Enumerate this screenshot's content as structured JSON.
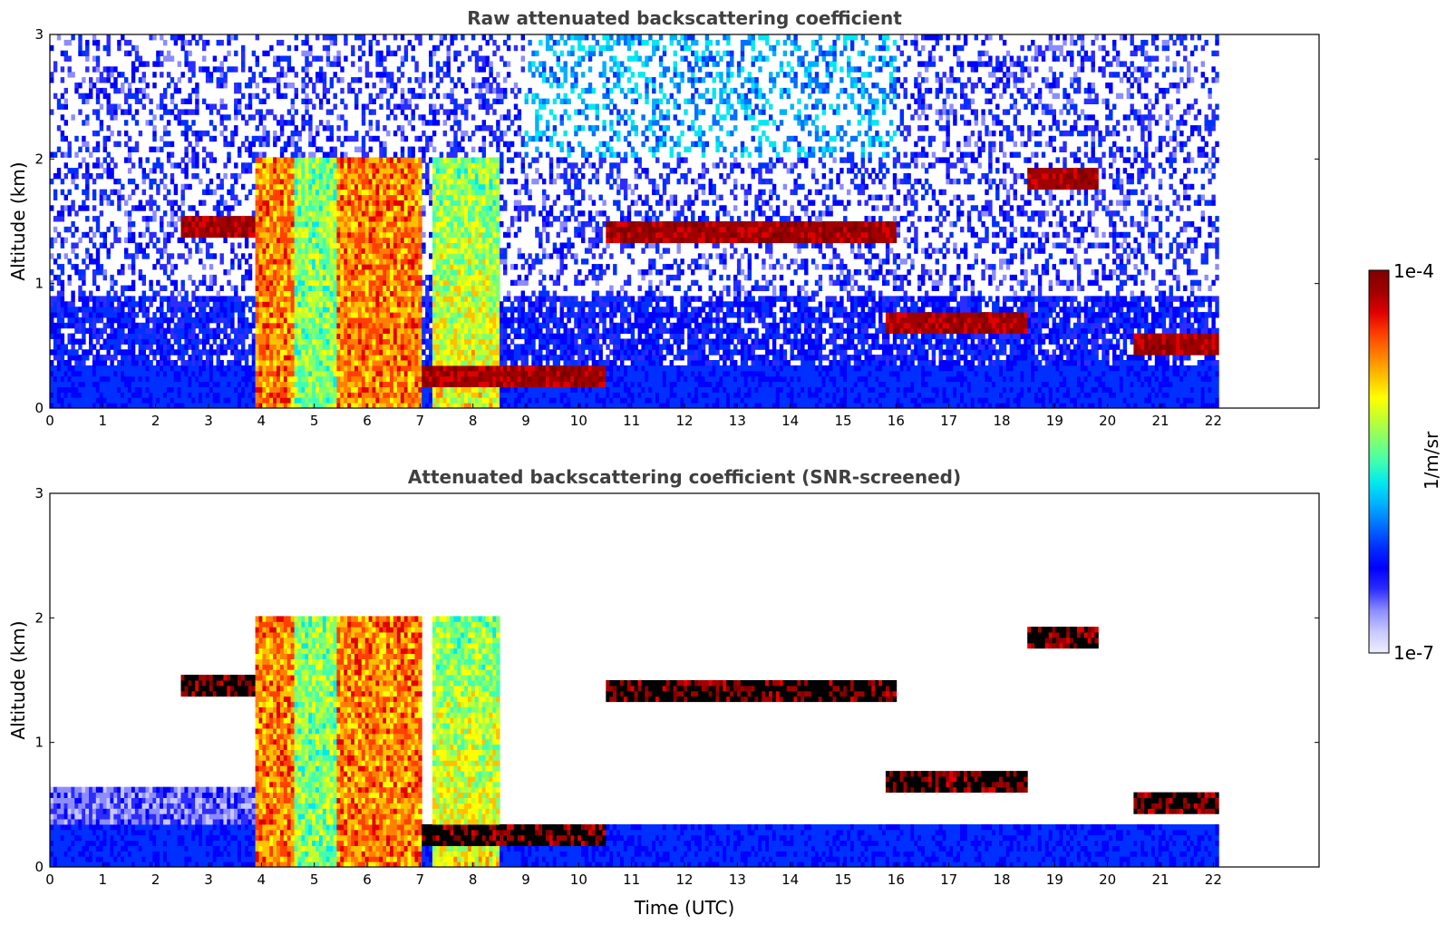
{
  "chart_data": [
    {
      "type": "heatmap",
      "title": "Raw attenuated backscattering coefficient",
      "xlabel": "",
      "ylabel": "Altitude (km)",
      "xlim": [
        0,
        24
      ],
      "ylim": [
        0,
        3
      ],
      "xticks": [
        "0",
        "1",
        "2",
        "3",
        "4",
        "5",
        "6",
        "7",
        "8",
        "9",
        "10",
        "11",
        "12",
        "13",
        "14",
        "15",
        "16",
        "17",
        "18",
        "19",
        "20",
        "21",
        "22"
      ],
      "yticks": [
        "0",
        "1",
        "2",
        "3"
      ],
      "data_end_time": 22.1,
      "screened": false,
      "layers": [
        {
          "name": "aerosol boundary layer",
          "t0": 0.0,
          "t1": 22.1,
          "top_km": 0.35
        },
        {
          "name": "cloud layer",
          "t0": 2.5,
          "t1": 4.0,
          "alt_km": 1.45
        },
        {
          "name": "deep cloud / precipitation",
          "t0": 3.9,
          "t1": 7.0,
          "top_km": 2.0
        },
        {
          "name": "cloud columns",
          "t0": 7.2,
          "t1": 8.5,
          "top_km": 2.0
        },
        {
          "name": "low cloud",
          "t0": 7.0,
          "t1": 10.5,
          "alt_km": 0.25
        },
        {
          "name": "broken cloud",
          "t0": 10.5,
          "t1": 16.0,
          "alt_km": 1.4
        },
        {
          "name": "descending cloud layer",
          "t0": 15.8,
          "t1": 18.5,
          "alt_km": 0.7
        },
        {
          "name": "elevated cloud",
          "t0": 18.5,
          "t1": 19.8,
          "alt_km": 1.85
        },
        {
          "name": "low cloud layer",
          "t0": 20.5,
          "t1": 22.1,
          "alt_km": 0.5
        }
      ]
    },
    {
      "type": "heatmap",
      "title": "Attenuated backscattering coefficient (SNR-screened)",
      "xlabel": "Time (UTC)",
      "ylabel": "Altitude (km)",
      "xlim": [
        0,
        24
      ],
      "ylim": [
        0,
        3
      ],
      "xticks": [
        "0",
        "1",
        "2",
        "3",
        "4",
        "5",
        "6",
        "7",
        "8",
        "9",
        "10",
        "11",
        "12",
        "13",
        "14",
        "15",
        "16",
        "17",
        "18",
        "19",
        "20",
        "21",
        "22"
      ],
      "yticks": [
        "0",
        "1",
        "2",
        "3"
      ],
      "data_end_time": 22.1,
      "screened": true
    }
  ],
  "colorbar": {
    "label": "1/m/sr",
    "max_label": "1e-4",
    "min_label": "1e-7",
    "scale": "log",
    "colormap": "jet",
    "colors": [
      "#eeeeff",
      "#c8c8ff",
      "#8c8cff",
      "#2c2cff",
      "#0000ff",
      "#0030ff",
      "#0070ff",
      "#00b0ff",
      "#00e8f0",
      "#40ffb0",
      "#80ff70",
      "#c0ff30",
      "#ffff00",
      "#ffc000",
      "#ff8000",
      "#ff4000",
      "#e00000",
      "#a00000",
      "#800000"
    ]
  }
}
